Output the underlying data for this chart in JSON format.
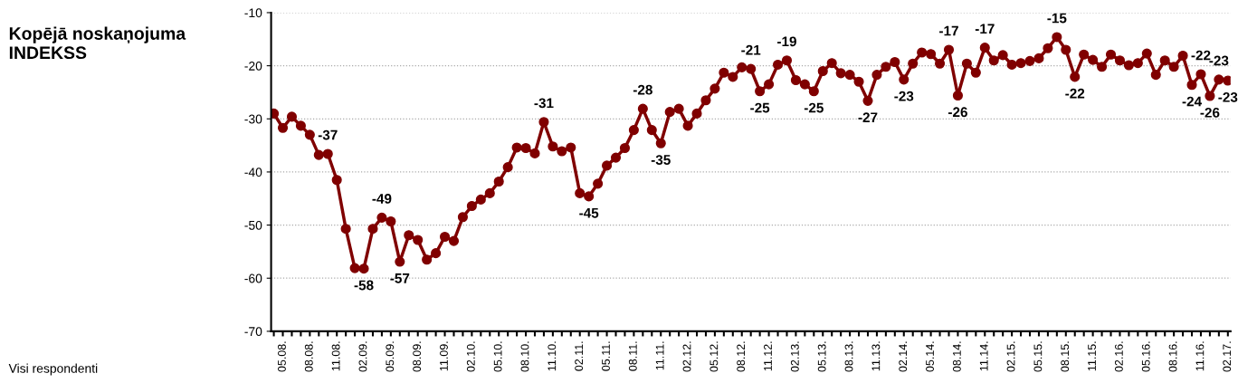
{
  "chart_data": {
    "type": "line",
    "title": "Kopējā noskaņojuma\nINDEKSS",
    "annotations": [
      "Visi respondenti"
    ],
    "categories": [
      null,
      "05.08.",
      null,
      null,
      "08.08.",
      null,
      null,
      "11.08.",
      null,
      null,
      "02.09.",
      null,
      null,
      "05.09.",
      null,
      null,
      "08.09.",
      null,
      null,
      "11.09.",
      null,
      null,
      "02.10.",
      null,
      null,
      "05.10.",
      null,
      null,
      "08.10.",
      null,
      null,
      "11.10.",
      null,
      null,
      "02.11.",
      null,
      null,
      "05.11.",
      null,
      null,
      "08.11.",
      null,
      null,
      "11.11.",
      null,
      null,
      "02.12.",
      null,
      null,
      "05.12.",
      null,
      null,
      "08.12.",
      null,
      null,
      "11.12.",
      null,
      null,
      "02.13.",
      null,
      null,
      "05.13.",
      null,
      null,
      "08.13.",
      null,
      null,
      "11.13.",
      null,
      null,
      "02.14.",
      null,
      null,
      "05.14.",
      null,
      null,
      "08.14.",
      null,
      null,
      "11.14.",
      null,
      null,
      "02.15.",
      null,
      null,
      "05.15.",
      null,
      null,
      "08.15.",
      null,
      null,
      "11.15.",
      null,
      null,
      "02.16.",
      null,
      null,
      "05.16.",
      null,
      null,
      "08.16.",
      null,
      null,
      "11.16.",
      null,
      null,
      "02.17."
    ],
    "series": [
      {
        "color": "#800000",
        "values": [
          -29.0,
          -31.7,
          -29.6,
          -31.3,
          -33.0,
          -36.8,
          -36.6,
          -41.5,
          -50.7,
          -58.1,
          -58.2,
          -50.7,
          -48.6,
          -49.3,
          -56.9,
          -51.9,
          -52.8,
          -56.5,
          -55.3,
          -52.2,
          -53.0,
          -48.5,
          -46.4,
          -45.2,
          -44.0,
          -41.8,
          -39.1,
          -35.4,
          -35.5,
          -36.5,
          -30.6,
          -35.2,
          -36.1,
          -35.4,
          -44.0,
          -44.6,
          -42.2,
          -38.8,
          -37.3,
          -35.5,
          -32.1,
          -28.1,
          -32.1,
          -34.6,
          -28.7,
          -28.1,
          -31.3,
          -29.0,
          -26.5,
          -24.3,
          -21.3,
          -22.1,
          -20.3,
          -20.6,
          -24.8,
          -23.5,
          -19.8,
          -19.0,
          -22.7,
          -23.5,
          -24.8,
          -21.0,
          -19.5,
          -21.4,
          -21.7,
          -23.0,
          -26.6,
          -21.7,
          -20.2,
          -19.3,
          -22.6,
          -19.6,
          -17.5,
          -17.8,
          -19.6,
          -17.0,
          -25.6,
          -19.6,
          -21.3,
          -16.6,
          -19.0,
          -18.0,
          -19.8,
          -19.5,
          -19.1,
          -18.6,
          -16.7,
          -14.6,
          -17.0,
          -22.1,
          -17.9,
          -18.9,
          -20.2,
          -17.9,
          -19.0,
          -19.9,
          -19.5,
          -17.7,
          -21.7,
          -19.0,
          -20.2,
          -18.1,
          -23.6,
          -21.6,
          -25.7,
          -22.6,
          -22.8
        ],
        "value_labels": [
          null,
          null,
          null,
          null,
          null,
          null,
          "-37",
          null,
          null,
          null,
          "-58",
          null,
          "-49",
          null,
          "-57",
          null,
          null,
          null,
          null,
          null,
          null,
          null,
          null,
          null,
          null,
          null,
          null,
          null,
          null,
          null,
          "-31",
          null,
          null,
          null,
          null,
          "-45",
          null,
          null,
          null,
          null,
          null,
          "-28",
          null,
          "-35",
          null,
          null,
          null,
          null,
          null,
          null,
          null,
          null,
          null,
          "-21",
          "-25",
          null,
          null,
          "-19",
          null,
          null,
          "-25",
          null,
          null,
          null,
          null,
          null,
          "-27",
          null,
          null,
          null,
          "-23",
          null,
          null,
          null,
          null,
          "-17",
          "-26",
          null,
          null,
          "-17",
          null,
          null,
          null,
          null,
          null,
          null,
          null,
          "-15",
          null,
          "-22",
          null,
          null,
          null,
          null,
          null,
          null,
          null,
          null,
          null,
          null,
          null,
          null,
          "-24",
          "-22",
          "-26",
          "-23",
          "-23"
        ]
      }
    ],
    "ylim": [
      -70,
      -10
    ],
    "yticks": [
      -70,
      -60,
      -50,
      -40,
      -30,
      -20,
      -10
    ],
    "grid": "y",
    "marker": "circle",
    "line_style": "solid"
  }
}
